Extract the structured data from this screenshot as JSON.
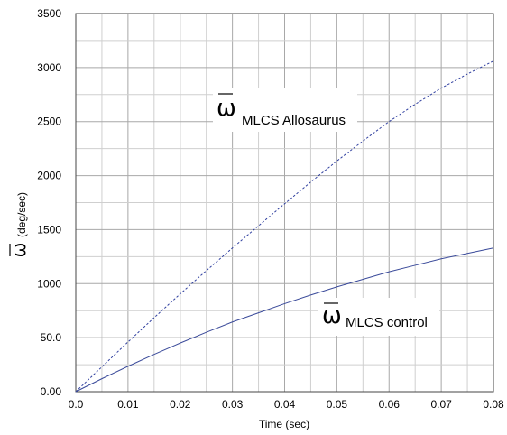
{
  "chart_data": {
    "type": "line",
    "xlabel": "Time (sec)",
    "ylabel_symbol": "ω",
    "ylabel_unit": "(deg/sec)",
    "xlim": [
      0,
      0.08
    ],
    "ylim": [
      0,
      3500
    ],
    "x_ticks": [
      "0.0",
      "0.01",
      "0.02",
      "0.03",
      "0.04",
      "0.05",
      "0.06",
      "0.07",
      "0.08"
    ],
    "y_ticks": [
      "0.00",
      "50.0",
      "1000",
      "1500",
      "2000",
      "2500",
      "3000",
      "3500"
    ],
    "grid": true,
    "series": [
      {
        "name": "ω MLCS Allosaurus",
        "symbol": "ω",
        "subscript": "MLCS Allosaurus",
        "style": "dashed",
        "color": "#2f3f9f",
        "x": [
          0,
          0.005,
          0.01,
          0.015,
          0.02,
          0.025,
          0.03,
          0.035,
          0.04,
          0.045,
          0.05,
          0.055,
          0.06,
          0.065,
          0.07,
          0.075,
          0.08
        ],
        "y": [
          0,
          230,
          460,
          685,
          905,
          1120,
          1330,
          1535,
          1740,
          1940,
          2135,
          2320,
          2500,
          2660,
          2810,
          2940,
          3060
        ]
      },
      {
        "name": "ω MLCS control",
        "symbol": "ω",
        "subscript": "MLCS control",
        "style": "solid",
        "color": "#3a4a9a",
        "x": [
          0,
          0.005,
          0.01,
          0.015,
          0.02,
          0.025,
          0.03,
          0.035,
          0.04,
          0.045,
          0.05,
          0.055,
          0.06,
          0.065,
          0.07,
          0.075,
          0.08
        ],
        "y": [
          0,
          120,
          235,
          345,
          450,
          550,
          645,
          730,
          815,
          895,
          970,
          1040,
          1110,
          1170,
          1230,
          1280,
          1330
        ]
      }
    ]
  }
}
